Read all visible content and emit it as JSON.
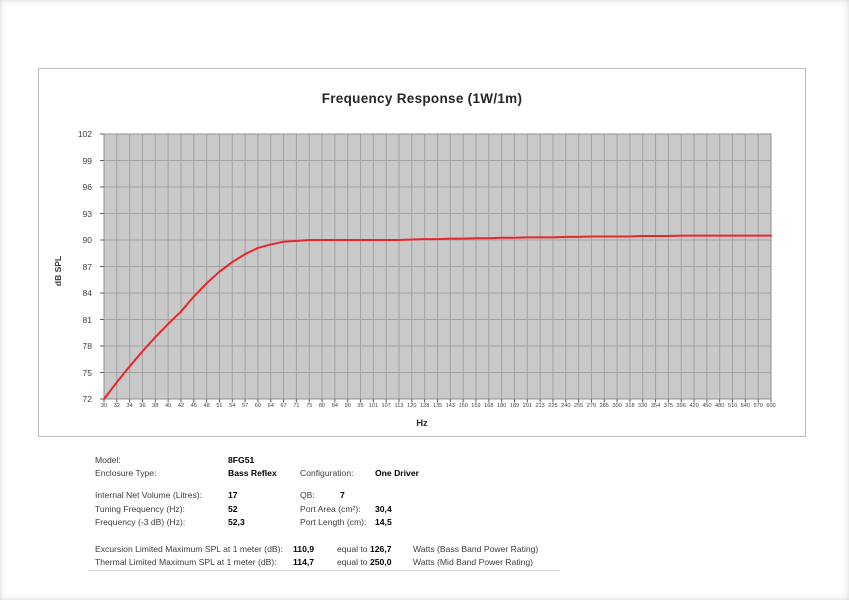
{
  "chart": {
    "colors": {
      "curve": "#e8262b",
      "plot_bg": "#c9c9c9",
      "grid": "#a2a2a2",
      "plot_border": "#8f8f8f",
      "tick": "#5a5a5a"
    }
  },
  "chart_data": {
    "type": "line",
    "title": "Frequency Response (1W/1m)",
    "xlabel": "Hz",
    "ylabel": "dB SPL",
    "x_scale": "logarithmic (1/12-octave ticks, evenly spaced on axis)",
    "grid": true,
    "legend": false,
    "ylim": [
      72,
      102
    ],
    "y_ticks": [
      72,
      75,
      78,
      81,
      84,
      87,
      90,
      93,
      96,
      99,
      102
    ],
    "categories": [
      30,
      32,
      34,
      36,
      38,
      40,
      42,
      45,
      48,
      51,
      54,
      57,
      60,
      64,
      67,
      71,
      75,
      80,
      84,
      90,
      95,
      101,
      107,
      113,
      120,
      128,
      135,
      143,
      150,
      159,
      168,
      180,
      189,
      201,
      213,
      225,
      240,
      255,
      270,
      285,
      300,
      318,
      336,
      354,
      375,
      396,
      420,
      450,
      480,
      510,
      540,
      570,
      600
    ],
    "series": [
      {
        "name": "SPL (1W/1m)",
        "color": "#e8262b",
        "values": [
          72.0,
          73.9,
          75.7,
          77.4,
          79.0,
          80.5,
          81.9,
          83.6,
          85.1,
          86.4,
          87.5,
          88.4,
          89.1,
          89.5,
          89.8,
          89.9,
          90.0,
          90.0,
          90.0,
          90.0,
          90.0,
          90.0,
          90.0,
          90.0,
          90.05,
          90.1,
          90.1,
          90.15,
          90.15,
          90.2,
          90.2,
          90.25,
          90.25,
          90.3,
          90.3,
          90.3,
          90.35,
          90.35,
          90.4,
          90.4,
          90.4,
          90.4,
          90.45,
          90.45,
          90.45,
          90.5,
          90.5,
          90.5,
          90.5,
          90.5,
          90.5,
          90.5,
          90.5
        ]
      }
    ]
  },
  "specs": {
    "model_label": "Model:",
    "model_value": "8FG51",
    "enclosure_label": "Enclosure Type:",
    "enclosure_value": "Bass Reflex",
    "configuration_label": "Configuration:",
    "configuration_value": "One Driver",
    "volume_label": "Internal  Net Volume (Litres):",
    "volume_value": "17",
    "qb_label": "QB:",
    "qb_value": "7",
    "tuning_label": "Tuning Frequency (Hz):",
    "tuning_value": "52",
    "port_area_label": "Port Area (cm²):",
    "port_area_value": "30,4",
    "f3_label": "Frequency (-3 dB) (Hz):",
    "f3_value": "52,3",
    "port_length_label": "Port Length (cm):",
    "port_length_value": "14,5",
    "excursion_label": "Excursion Limited Maximum SPL at 1 meter (dB):",
    "excursion_value": "110,9",
    "excursion_equal": "equal to",
    "excursion_watts": "126,7",
    "excursion_note": "Watts (Bass Band Power Rating)",
    "thermal_label": "Thermal Limited Maximum SPL at 1 meter (dB):",
    "thermal_value": "114,7",
    "thermal_equal": "equal to",
    "thermal_watts": "250,0",
    "thermal_note": "Watts (Mid Band Power Rating)"
  }
}
